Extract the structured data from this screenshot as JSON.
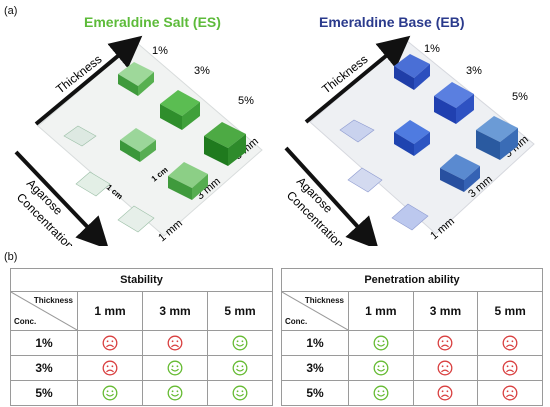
{
  "panel_a_label": "(a)",
  "panel_b_label": "(b)",
  "photos": {
    "es_title": "Emeraldine Salt (ES)",
    "eb_title": "Emeraldine Base (EB)",
    "thickness_label": "Thickness",
    "concentration_label_line1": "Agarose",
    "concentration_label_line2": "Concentration",
    "pct": [
      "1%",
      "3%",
      "5%"
    ],
    "mm": [
      "1 mm",
      "3 mm",
      "5 mm"
    ],
    "scale_label": "1 cm"
  },
  "colors": {
    "es_title": "#5dbb3a",
    "eb_title": "#2a3a8c",
    "happy": "#66bb33",
    "sad": "#d94040"
  },
  "stability": {
    "title": "Stability",
    "corner_top": "Thickness",
    "corner_bottom": "Conc.",
    "columns": [
      "1 mm",
      "3 mm",
      "5 mm"
    ],
    "rows": [
      {
        "label": "1%",
        "faces": [
          "sad",
          "sad",
          "happy"
        ]
      },
      {
        "label": "3%",
        "faces": [
          "sad",
          "happy",
          "happy"
        ]
      },
      {
        "label": "5%",
        "faces": [
          "happy",
          "happy",
          "happy"
        ]
      }
    ]
  },
  "penetration": {
    "title": "Penetration  ability",
    "corner_top": "Thickness",
    "corner_bottom": "Conc.",
    "columns": [
      "1 mm",
      "3 mm",
      "5 mm"
    ],
    "rows": [
      {
        "label": "1%",
        "faces": [
          "happy",
          "sad",
          "sad"
        ]
      },
      {
        "label": "3%",
        "faces": [
          "happy",
          "sad",
          "sad"
        ]
      },
      {
        "label": "5%",
        "faces": [
          "happy",
          "sad",
          "sad"
        ]
      }
    ]
  }
}
